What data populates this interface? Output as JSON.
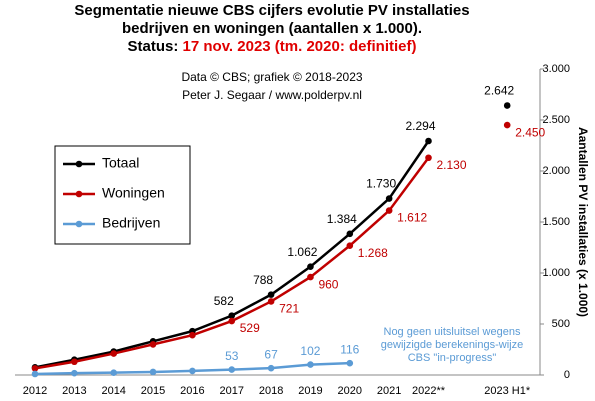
{
  "chart_data": {
    "type": "line",
    "title": [
      "Segmentatie nieuwe CBS cijfers evolutie PV installaties",
      "bedrijven en woningen (aantallen x 1.000)."
    ],
    "status_label": "Status:",
    "status": "17 nov. 2023 (tm. 2020: definitief)",
    "subtitle": [
      "Data © CBS; grafiek © 2018-2023",
      "Peter J. Segaar / www.polderpv.nl"
    ],
    "annotation": [
      "Nog geen uitsluitsel wegens",
      "gewijzigde berekenings-wijze",
      "CBS \"in-progress\""
    ],
    "y_axis_label": "Aantallen PV installaties (x 1.000)",
    "categories": [
      "2012",
      "2013",
      "2014",
      "2015",
      "2016",
      "2017",
      "2018",
      "2019",
      "2020",
      "2021",
      "2022**",
      null,
      "2023 H1*"
    ],
    "series": [
      {
        "name": "Totaal",
        "color": "#000000",
        "values": [
          75,
          150,
          230,
          330,
          430,
          582,
          788,
          1062,
          1384,
          1730,
          2294,
          null,
          2642
        ],
        "value_labels": [
          null,
          null,
          null,
          null,
          null,
          "582",
          "788",
          "1.062",
          "1.384",
          "1.730",
          "2.294",
          null,
          "2.642"
        ]
      },
      {
        "name": "Woningen",
        "color": "#c00000",
        "values": [
          65,
          130,
          210,
          300,
          390,
          529,
          721,
          960,
          1268,
          1612,
          2130,
          null,
          2450
        ],
        "value_labels": [
          null,
          null,
          null,
          null,
          null,
          "529",
          "721",
          "960",
          "1.268",
          "1.612",
          "2.130",
          null,
          "2.450"
        ]
      },
      {
        "name": "Bedrijven",
        "color": "#5b9bd5",
        "values": [
          10,
          18,
          23,
          30,
          40,
          53,
          67,
          102,
          116,
          null,
          null,
          null,
          null
        ],
        "value_labels": [
          null,
          null,
          null,
          null,
          null,
          "53",
          "67",
          "102",
          "116",
          null,
          null,
          null,
          null
        ]
      }
    ],
    "ylim": [
      0,
      3000
    ],
    "yticks": [
      0,
      500,
      {
        "value": 1000,
        "label": "1.000"
      },
      {
        "value": 1500,
        "label": "1.500"
      },
      {
        "value": 2000,
        "label": "2.000"
      },
      {
        "value": 2500,
        "label": "2.500"
      },
      {
        "value": 3000,
        "label": "3.000"
      }
    ],
    "y_axis_side": "right",
    "grid": false,
    "legend": "left"
  }
}
